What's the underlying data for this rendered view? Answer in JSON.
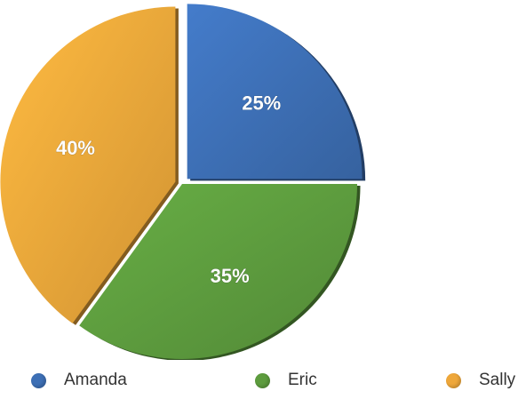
{
  "chart_data": {
    "type": "pie",
    "title": "",
    "slices": [
      {
        "name": "Amanda",
        "value": 25,
        "label": "25%",
        "color": "#3d6fb5",
        "exploded": true
      },
      {
        "name": "Eric",
        "value": 35,
        "label": "35%",
        "color": "#5d9c3e",
        "exploded": false
      },
      {
        "name": "Sally",
        "value": 40,
        "label": "40%",
        "color": "#eea73a",
        "exploded": true
      }
    ],
    "legend": {
      "placement": "bottom",
      "items": [
        {
          "name": "Amanda",
          "color": "#3d6fb5"
        },
        {
          "name": "Eric",
          "color": "#5d9c3e"
        },
        {
          "name": "Sally",
          "color": "#eea73a"
        }
      ]
    }
  }
}
